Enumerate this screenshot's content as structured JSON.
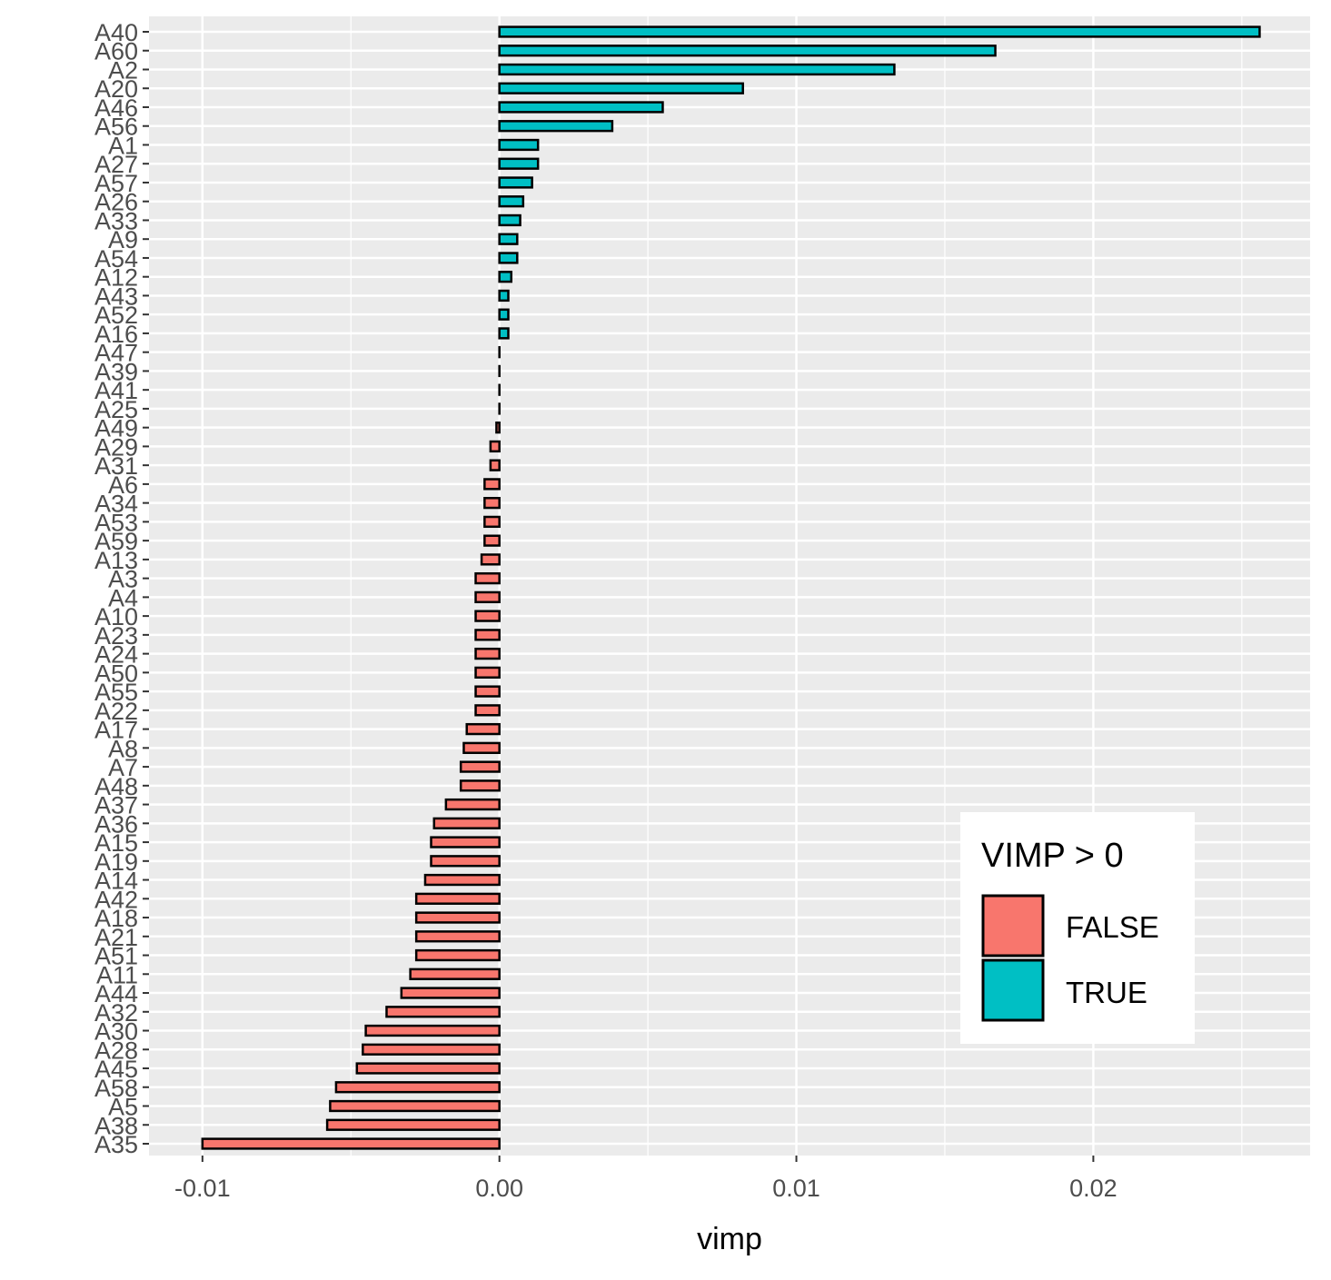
{
  "chart_data": {
    "type": "bar",
    "orientation": "horizontal",
    "xlabel": "vimp",
    "ylabel": "",
    "xlim": [
      -0.0118,
      0.0273
    ],
    "xticks": [
      -0.01,
      0.0,
      0.01,
      0.02
    ],
    "xtick_labels": [
      "-0.01",
      "0.00",
      "0.01",
      "0.02"
    ],
    "grid": true,
    "legend": {
      "title": "VIMP > 0",
      "placement": "bottom-right",
      "entries": [
        {
          "label": "FALSE",
          "color": "#F8766D"
        },
        {
          "label": "TRUE",
          "color": "#00BFC4"
        }
      ]
    },
    "colors": {
      "false": "#F8766D",
      "true": "#00BFC4",
      "panel": "#EBEBEB",
      "grid": "#FFFFFF"
    },
    "categories": [
      "A40",
      "A60",
      "A2",
      "A20",
      "A46",
      "A56",
      "A1",
      "A27",
      "A57",
      "A26",
      "A33",
      "A9",
      "A54",
      "A12",
      "A43",
      "A52",
      "A16",
      "A47",
      "A39",
      "A41",
      "A25",
      "A49",
      "A29",
      "A31",
      "A6",
      "A34",
      "A53",
      "A59",
      "A13",
      "A3",
      "A4",
      "A10",
      "A23",
      "A24",
      "A50",
      "A55",
      "A22",
      "A17",
      "A8",
      "A7",
      "A48",
      "A37",
      "A36",
      "A15",
      "A19",
      "A14",
      "A42",
      "A18",
      "A21",
      "A51",
      "A11",
      "A44",
      "A32",
      "A30",
      "A28",
      "A45",
      "A58",
      "A5",
      "A38",
      "A35"
    ],
    "values": [
      0.0256,
      0.0167,
      0.0133,
      0.0082,
      0.0055,
      0.0038,
      0.0013,
      0.0013,
      0.0011,
      0.0008,
      0.0007,
      0.0006,
      0.0006,
      0.0004,
      0.0003,
      0.0003,
      0.0003,
      0.0,
      0.0,
      0.0,
      0.0,
      -0.0001,
      -0.0003,
      -0.0003,
      -0.0005,
      -0.0005,
      -0.0005,
      -0.0005,
      -0.0006,
      -0.0008,
      -0.0008,
      -0.0008,
      -0.0008,
      -0.0008,
      -0.0008,
      -0.0008,
      -0.0008,
      -0.0011,
      -0.0012,
      -0.0013,
      -0.0013,
      -0.0018,
      -0.0022,
      -0.0023,
      -0.0023,
      -0.0025,
      -0.0028,
      -0.0028,
      -0.0028,
      -0.0028,
      -0.003,
      -0.0033,
      -0.0038,
      -0.0045,
      -0.0046,
      -0.0048,
      -0.0055,
      -0.0057,
      -0.0058,
      -0.01
    ]
  }
}
